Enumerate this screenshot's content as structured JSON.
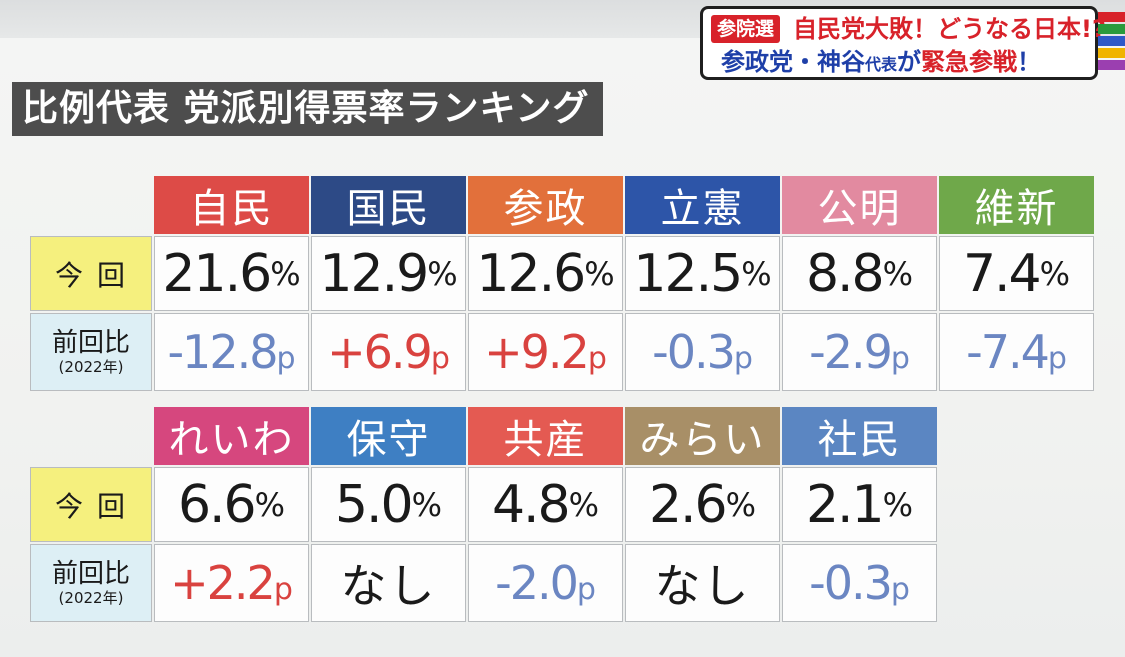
{
  "banner": {
    "tag": "参院選",
    "line1": "自民党大敗！どうなる日本!?",
    "line2_a": "参政党・神谷",
    "line2_small": "代表",
    "line2_b": "が",
    "line2_red": "緊急参戦",
    "line2_c": "！"
  },
  "title": "比例代表 党派別得票率ランキング",
  "row_labels": {
    "now": "今回",
    "compare": "前回比",
    "compare_year": "(2022年)"
  },
  "colors": {
    "positive": "#d9423f",
    "negative": "#6b86c2",
    "now_label_bg": "#f5f07e",
    "compare_label_bg": "#ddeff5"
  },
  "tables": [
    {
      "parties": [
        {
          "name": "自民",
          "color": "#dd4b47",
          "share": "21.6",
          "pct": "%",
          "change": "-12.8",
          "unit": "p",
          "sign": "neg"
        },
        {
          "name": "国民",
          "color": "#2d4a86",
          "share": "12.9",
          "pct": "%",
          "change": "+6.9",
          "unit": "p",
          "sign": "pos"
        },
        {
          "name": "参政",
          "color": "#e2703b",
          "share": "12.6",
          "pct": "%",
          "change": "+9.2",
          "unit": "p",
          "sign": "pos"
        },
        {
          "name": "立憲",
          "color": "#2d55a8",
          "share": "12.5",
          "pct": "%",
          "change": "-0.3",
          "unit": "p",
          "sign": "neg"
        },
        {
          "name": "公明",
          "color": "#e28aa0",
          "share": "8.8",
          "pct": "%",
          "change": "-2.9",
          "unit": "p",
          "sign": "neg"
        },
        {
          "name": "維新",
          "color": "#6fa84a",
          "share": "7.4",
          "pct": "%",
          "change": "-7.4",
          "unit": "p",
          "sign": "neg"
        }
      ]
    },
    {
      "parties": [
        {
          "name": "れいわ",
          "color": "#d6477e",
          "share": "6.6",
          "pct": "%",
          "change": "+2.2",
          "unit": "p",
          "sign": "pos"
        },
        {
          "name": "保守",
          "color": "#3e7fc3",
          "share": "5.0",
          "pct": "%",
          "change": "なし",
          "unit": "",
          "sign": "none"
        },
        {
          "name": "共産",
          "color": "#e45a52",
          "share": "4.8",
          "pct": "%",
          "change": "-2.0",
          "unit": "p",
          "sign": "neg"
        },
        {
          "name": "みらい",
          "color": "#a88f67",
          "share": "2.6",
          "pct": "%",
          "change": "なし",
          "unit": "",
          "sign": "none"
        },
        {
          "name": "社民",
          "color": "#5b86c2",
          "share": "2.1",
          "pct": "%",
          "change": "-0.3",
          "unit": "p",
          "sign": "neg"
        }
      ]
    }
  ],
  "chart_data": {
    "type": "table",
    "title": "比例代表 党派別得票率ランキング",
    "columns": [
      "自民",
      "国民",
      "参政",
      "立憲",
      "公明",
      "維新",
      "れいわ",
      "保守",
      "共産",
      "みらい",
      "社民"
    ],
    "series": [
      {
        "name": "今回",
        "values": [
          21.6,
          12.9,
          12.6,
          12.5,
          8.8,
          7.4,
          6.6,
          5.0,
          4.8,
          2.6,
          2.1
        ],
        "unit": "%"
      },
      {
        "name": "前回比",
        "values": [
          -12.8,
          6.9,
          9.2,
          -0.3,
          -2.9,
          -7.4,
          2.2,
          null,
          -2.0,
          null,
          -0.3
        ],
        "unit": "p"
      }
    ]
  }
}
